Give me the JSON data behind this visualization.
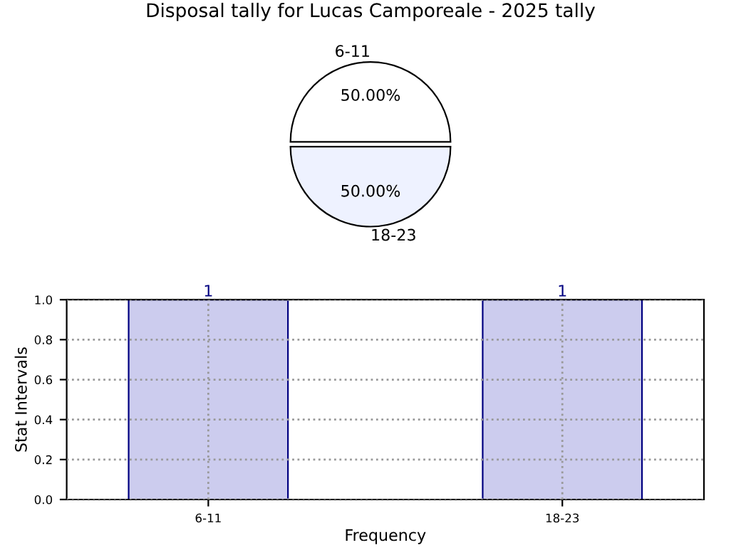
{
  "chart_data": [
    {
      "type": "pie",
      "title": "Disposal tally for Lucas Camporeale - 2025 tally",
      "categories": [
        "6-11",
        "18-23"
      ],
      "values": [
        50,
        50
      ],
      "colors": [
        "#ffffff",
        "#eef2ff"
      ],
      "value_labels": [
        "50.00%",
        "50.00%"
      ]
    },
    {
      "type": "bar",
      "categories": [
        "6-11",
        "18-23"
      ],
      "values": [
        1,
        1
      ],
      "color": "#ccccee",
      "xlabel": "Frequency",
      "ylabel": "Stat Intervals",
      "ylim": [
        0,
        1
      ],
      "yticks": [
        {
          "value": 0,
          "label": "0.0"
        },
        {
          "value": 0.2,
          "label": "0.2"
        },
        {
          "value": 0.4,
          "label": "0.4"
        },
        {
          "value": 0.6,
          "label": "0.6"
        },
        {
          "value": 0.8,
          "label": "0.8"
        },
        {
          "value": 1,
          "label": "1.0"
        }
      ],
      "grid": true,
      "data_labels": true
    }
  ]
}
